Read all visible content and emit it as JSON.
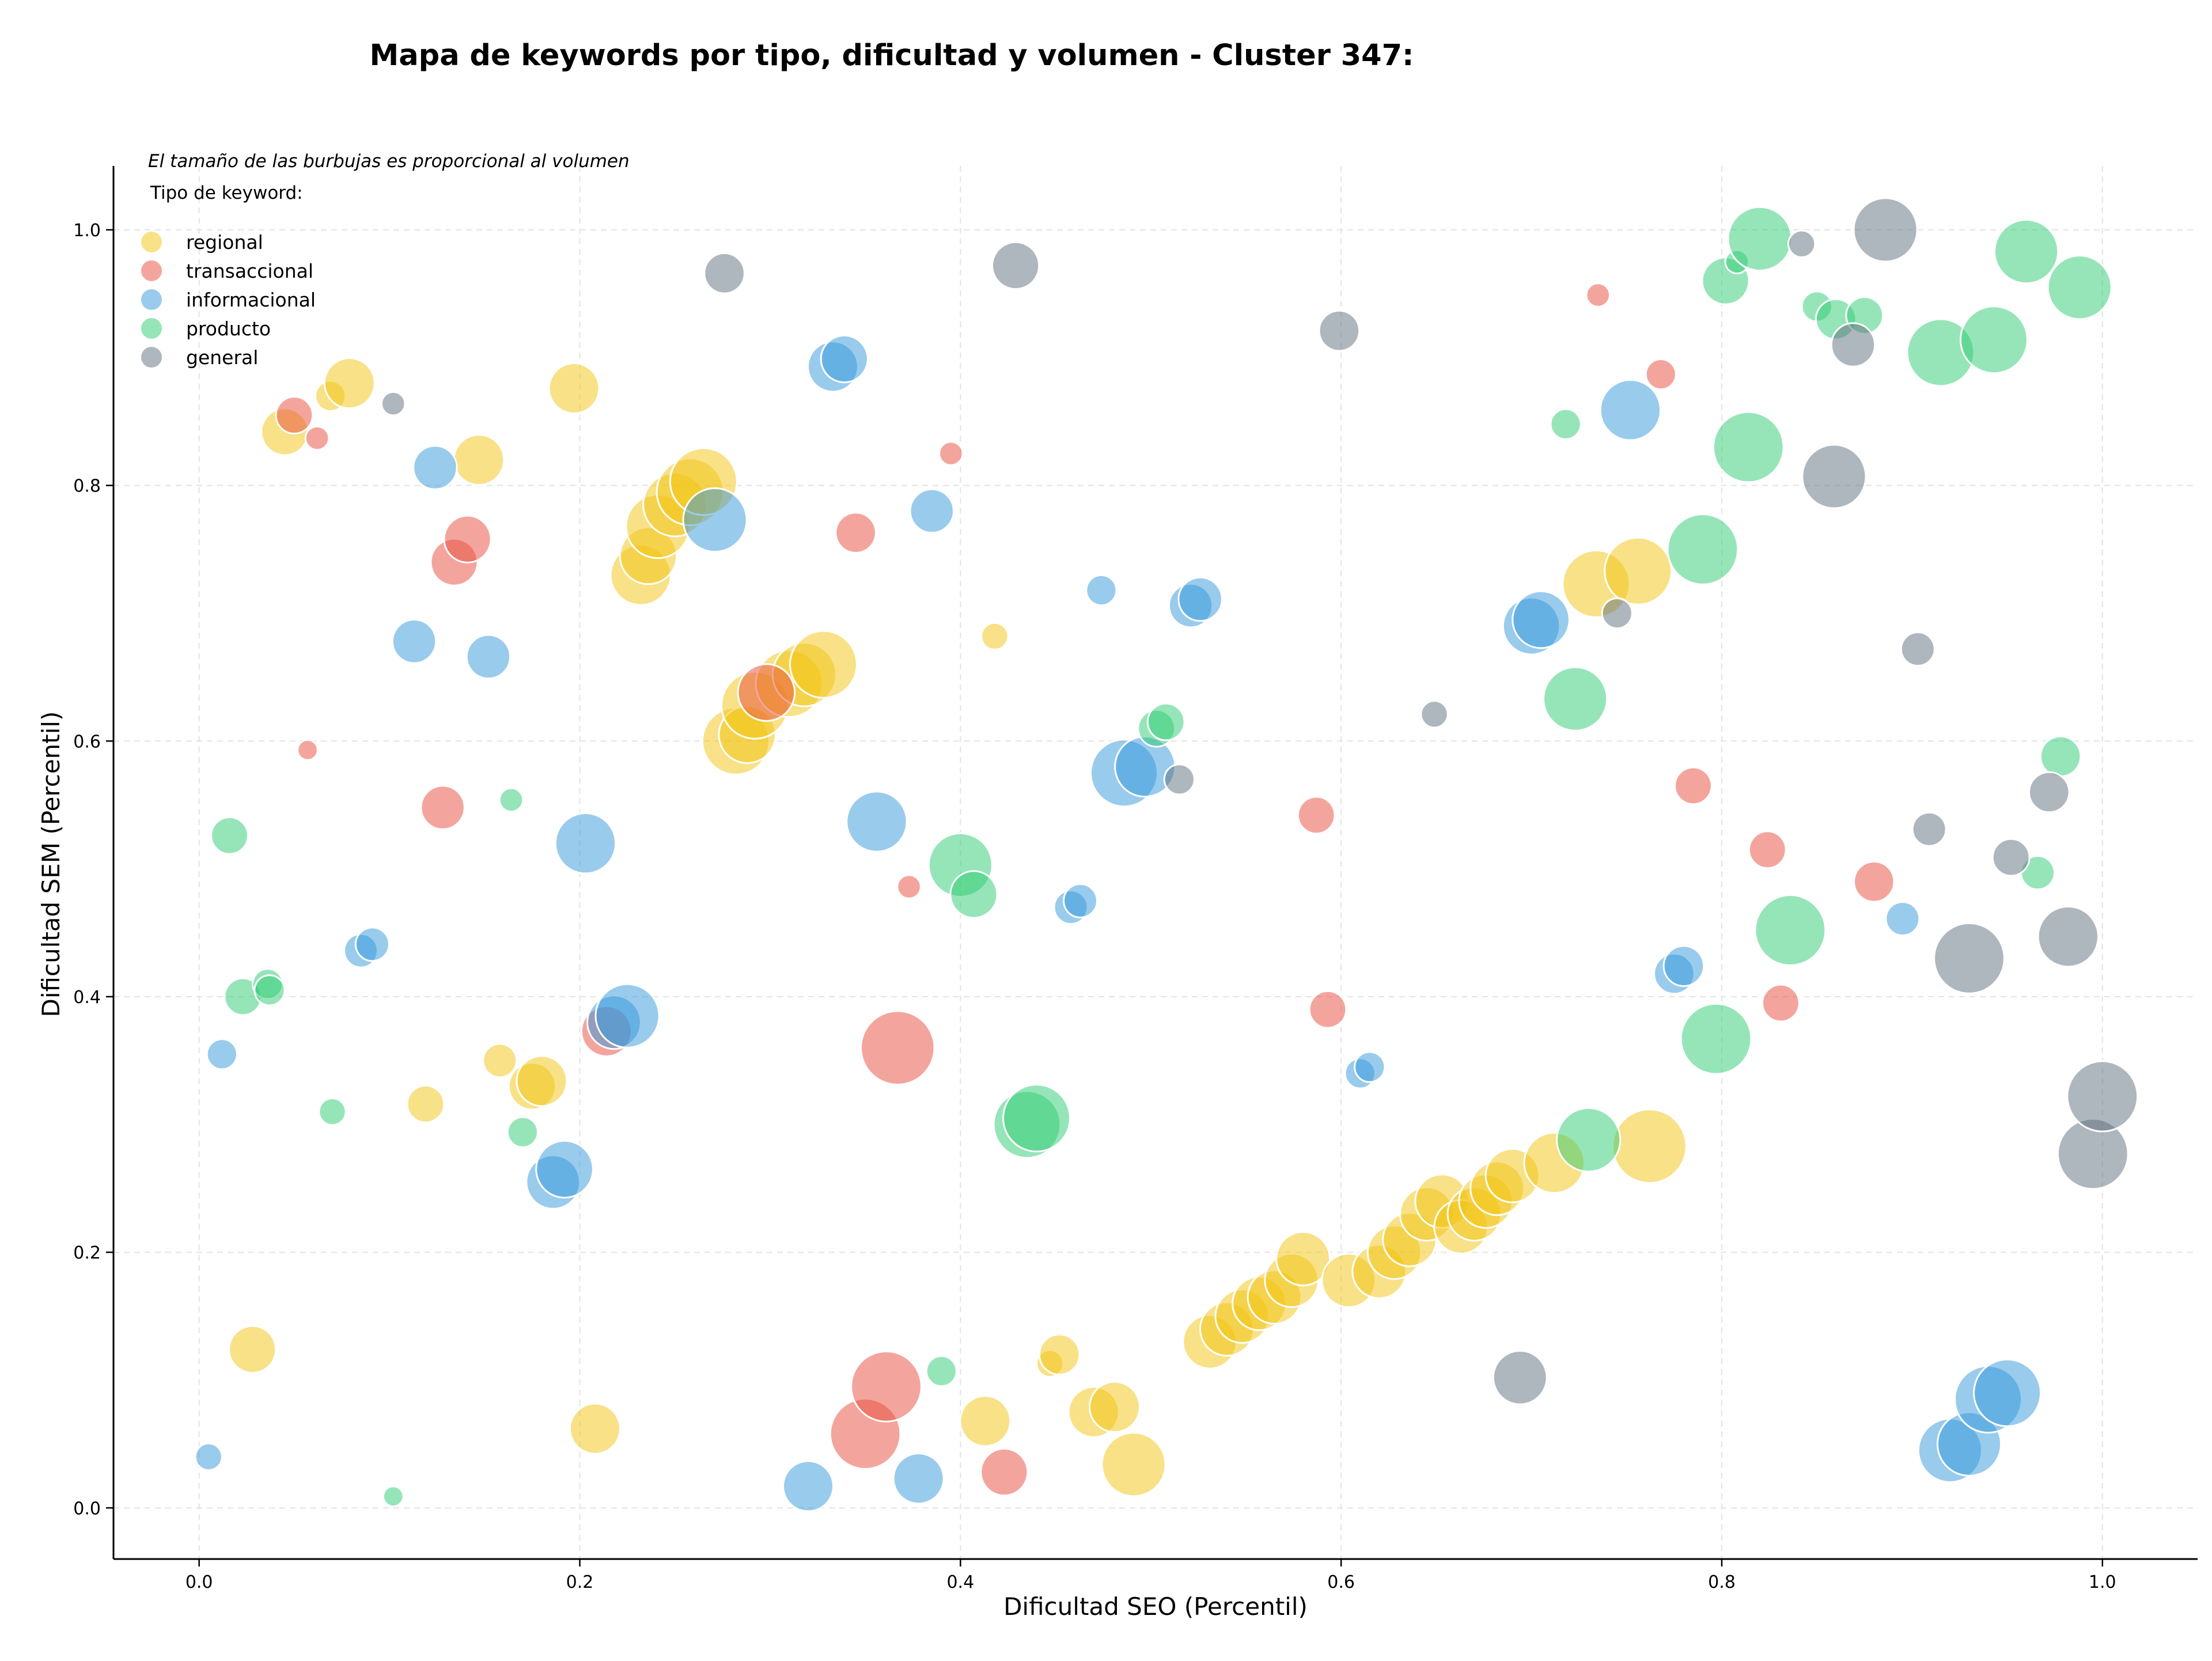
{
  "chart_data": {
    "type": "scatter",
    "title": "Mapa de keywords por tipo, dificultad y volumen - Cluster 347:",
    "xlabel": "Dificultad SEO (Percentil)",
    "ylabel": "Dificultad SEM (Percentil)",
    "note": "El tamaño de las burbujas es proporcional al volumen",
    "legend_title": "Tipo de keyword:",
    "legend_position": "top-left",
    "grid": true,
    "xlim": [
      -0.045,
      1.05
    ],
    "ylim": [
      -0.04,
      1.05
    ],
    "xticks": [
      "0.0",
      "0.2",
      "0.4",
      "0.6",
      "0.8",
      "1.0"
    ],
    "yticks": [
      "0.0",
      "0.2",
      "0.4",
      "0.6",
      "0.8",
      "1.0"
    ],
    "series": [
      {
        "name": "regional",
        "color": "#f1c40f",
        "points": [
          [
            0.045,
            0.842,
            14
          ],
          [
            0.069,
            0.87,
            9
          ],
          [
            0.079,
            0.88,
            15
          ],
          [
            0.147,
            0.82,
            15
          ],
          [
            0.197,
            0.876,
            15
          ],
          [
            0.232,
            0.73,
            18
          ],
          [
            0.236,
            0.745,
            17
          ],
          [
            0.241,
            0.768,
            19
          ],
          [
            0.25,
            0.785,
            19
          ],
          [
            0.258,
            0.795,
            20
          ],
          [
            0.265,
            0.803,
            20
          ],
          [
            0.282,
            0.6,
            20
          ],
          [
            0.288,
            0.605,
            17
          ],
          [
            0.292,
            0.628,
            20
          ],
          [
            0.31,
            0.645,
            20
          ],
          [
            0.318,
            0.652,
            19
          ],
          [
            0.328,
            0.66,
            20
          ],
          [
            0.028,
            0.124,
            14
          ],
          [
            0.158,
            0.35,
            10
          ],
          [
            0.119,
            0.316,
            11
          ],
          [
            0.175,
            0.33,
            14
          ],
          [
            0.18,
            0.334,
            15
          ],
          [
            0.208,
            0.062,
            15
          ],
          [
            0.418,
            0.682,
            8
          ],
          [
            0.413,
            0.068,
            15
          ],
          [
            0.447,
            0.113,
            8
          ],
          [
            0.452,
            0.12,
            12
          ],
          [
            0.47,
            0.075,
            15
          ],
          [
            0.481,
            0.079,
            15
          ],
          [
            0.491,
            0.034,
            19
          ],
          [
            0.531,
            0.13,
            16
          ],
          [
            0.54,
            0.14,
            16
          ],
          [
            0.548,
            0.15,
            16
          ],
          [
            0.557,
            0.16,
            16
          ],
          [
            0.565,
            0.165,
            16
          ],
          [
            0.574,
            0.178,
            16
          ],
          [
            0.58,
            0.195,
            16
          ],
          [
            0.604,
            0.178,
            16
          ],
          [
            0.62,
            0.185,
            16
          ],
          [
            0.628,
            0.2,
            16
          ],
          [
            0.636,
            0.21,
            16
          ],
          [
            0.645,
            0.23,
            16
          ],
          [
            0.653,
            0.24,
            16
          ],
          [
            0.663,
            0.22,
            16
          ],
          [
            0.67,
            0.23,
            16
          ],
          [
            0.676,
            0.24,
            16
          ],
          [
            0.682,
            0.25,
            16
          ],
          [
            0.69,
            0.26,
            16
          ],
          [
            0.712,
            0.27,
            18
          ],
          [
            0.734,
            0.723,
            20
          ],
          [
            0.756,
            0.733,
            20
          ],
          [
            0.762,
            0.283,
            22
          ]
        ]
      },
      {
        "name": "transaccional",
        "color": "#e74c3c",
        "points": [
          [
            0.05,
            0.855,
            11
          ],
          [
            0.062,
            0.837,
            7
          ],
          [
            0.057,
            0.593,
            6
          ],
          [
            0.128,
            0.548,
            13
          ],
          [
            0.134,
            0.74,
            14
          ],
          [
            0.141,
            0.758,
            14
          ],
          [
            0.214,
            0.373,
            15
          ],
          [
            0.298,
            0.638,
            17
          ],
          [
            0.345,
            0.763,
            12
          ],
          [
            0.367,
            0.36,
            22
          ],
          [
            0.373,
            0.486,
            7
          ],
          [
            0.395,
            0.825,
            7
          ],
          [
            0.35,
            0.058,
            21
          ],
          [
            0.361,
            0.095,
            21
          ],
          [
            0.423,
            0.028,
            14
          ],
          [
            0.587,
            0.542,
            11
          ],
          [
            0.593,
            0.39,
            11
          ],
          [
            0.735,
            0.949,
            7
          ],
          [
            0.768,
            0.887,
            9
          ],
          [
            0.785,
            0.565,
            11
          ],
          [
            0.824,
            0.515,
            11
          ],
          [
            0.831,
            0.395,
            11
          ],
          [
            0.88,
            0.49,
            12
          ]
        ]
      },
      {
        "name": "informacional",
        "color": "#3498db",
        "points": [
          [
            0.005,
            0.04,
            8
          ],
          [
            0.012,
            0.355,
            9
          ],
          [
            0.085,
            0.436,
            10
          ],
          [
            0.091,
            0.441,
            10
          ],
          [
            0.113,
            0.678,
            13
          ],
          [
            0.124,
            0.814,
            13
          ],
          [
            0.152,
            0.666,
            13
          ],
          [
            0.186,
            0.255,
            16
          ],
          [
            0.192,
            0.265,
            17
          ],
          [
            0.203,
            0.52,
            18
          ],
          [
            0.218,
            0.38,
            16
          ],
          [
            0.225,
            0.385,
            19
          ],
          [
            0.271,
            0.773,
            19
          ],
          [
            0.333,
            0.893,
            15
          ],
          [
            0.339,
            0.899,
            14
          ],
          [
            0.356,
            0.537,
            18
          ],
          [
            0.385,
            0.78,
            13
          ],
          [
            0.32,
            0.017,
            15
          ],
          [
            0.378,
            0.023,
            15
          ],
          [
            0.458,
            0.47,
            10
          ],
          [
            0.463,
            0.475,
            10
          ],
          [
            0.474,
            0.718,
            9
          ],
          [
            0.486,
            0.575,
            20
          ],
          [
            0.497,
            0.58,
            18
          ],
          [
            0.521,
            0.706,
            13
          ],
          [
            0.526,
            0.711,
            13
          ],
          [
            0.61,
            0.34,
            9
          ],
          [
            0.615,
            0.345,
            9
          ],
          [
            0.7,
            0.69,
            17
          ],
          [
            0.705,
            0.695,
            17
          ],
          [
            0.752,
            0.859,
            18
          ],
          [
            0.775,
            0.418,
            12
          ],
          [
            0.78,
            0.424,
            12
          ],
          [
            0.895,
            0.461,
            10
          ],
          [
            0.92,
            0.045,
            19
          ],
          [
            0.93,
            0.05,
            19
          ],
          [
            0.94,
            0.085,
            20
          ],
          [
            0.95,
            0.09,
            20
          ]
        ]
      },
      {
        "name": "producto",
        "color": "#2ecc71",
        "points": [
          [
            0.016,
            0.526,
            11
          ],
          [
            0.023,
            0.4,
            11
          ],
          [
            0.036,
            0.41,
            9
          ],
          [
            0.037,
            0.405,
            9
          ],
          [
            0.07,
            0.31,
            8
          ],
          [
            0.102,
            0.009,
            6
          ],
          [
            0.164,
            0.554,
            7
          ],
          [
            0.17,
            0.294,
            9
          ],
          [
            0.39,
            0.107,
            9
          ],
          [
            0.4,
            0.503,
            19
          ],
          [
            0.407,
            0.48,
            14
          ],
          [
            0.435,
            0.3,
            20
          ],
          [
            0.44,
            0.305,
            20
          ],
          [
            0.503,
            0.61,
            11
          ],
          [
            0.508,
            0.615,
            11
          ],
          [
            0.718,
            0.848,
            9
          ],
          [
            0.723,
            0.633,
            19
          ],
          [
            0.73,
            0.288,
            19
          ],
          [
            0.79,
            0.75,
            21
          ],
          [
            0.797,
            0.367,
            21
          ],
          [
            0.802,
            0.96,
            14
          ],
          [
            0.808,
            0.975,
            7
          ],
          [
            0.814,
            0.83,
            21
          ],
          [
            0.82,
            0.993,
            19
          ],
          [
            0.836,
            0.452,
            21
          ],
          [
            0.85,
            0.94,
            9
          ],
          [
            0.86,
            0.93,
            12
          ],
          [
            0.875,
            0.933,
            11
          ],
          [
            0.915,
            0.904,
            20
          ],
          [
            0.943,
            0.914,
            20
          ],
          [
            0.96,
            0.983,
            19
          ],
          [
            0.966,
            0.497,
            10
          ],
          [
            0.978,
            0.588,
            12
          ],
          [
            0.988,
            0.955,
            19
          ]
        ]
      },
      {
        "name": "general",
        "color": "#5d6d7e",
        "points": [
          [
            0.102,
            0.864,
            7
          ],
          [
            0.276,
            0.966,
            12
          ],
          [
            0.429,
            0.972,
            14
          ],
          [
            0.599,
            0.921,
            12
          ],
          [
            0.515,
            0.57,
            9
          ],
          [
            0.649,
            0.621,
            8
          ],
          [
            0.694,
            0.102,
            16
          ],
          [
            0.745,
            0.7,
            9
          ],
          [
            0.842,
            0.989,
            8
          ],
          [
            0.859,
            0.807,
            19
          ],
          [
            0.869,
            0.91,
            13
          ],
          [
            0.886,
            1.0,
            19
          ],
          [
            0.903,
            0.672,
            10
          ],
          [
            0.909,
            0.531,
            10
          ],
          [
            0.93,
            0.43,
            21
          ],
          [
            0.952,
            0.509,
            11
          ],
          [
            0.972,
            0.56,
            12
          ],
          [
            0.982,
            0.447,
            18
          ],
          [
            0.995,
            0.277,
            21
          ],
          [
            1.0,
            0.322,
            21
          ]
        ]
      }
    ]
  }
}
